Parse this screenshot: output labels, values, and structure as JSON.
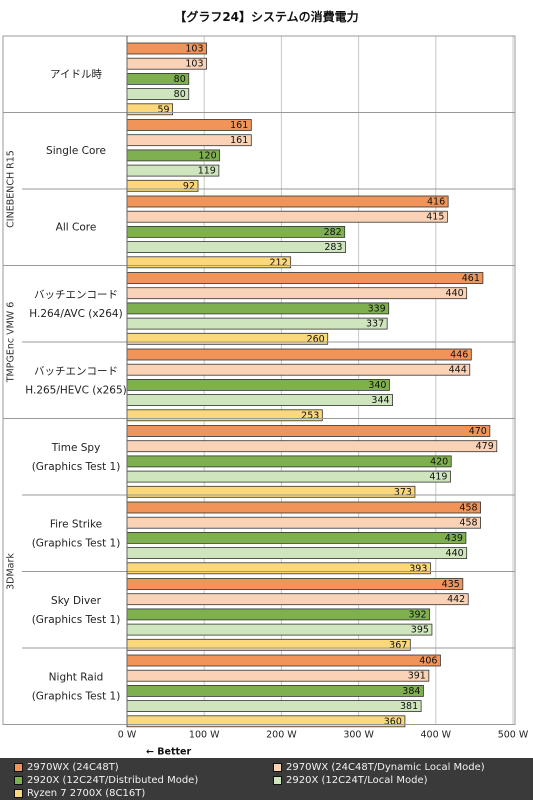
{
  "chart_data": {
    "type": "bar",
    "orientation": "horizontal",
    "title": "【グラフ24】システムの消費電力",
    "x_axis": {
      "min": 0,
      "max": 500,
      "step": 100,
      "tick_labels": [
        "0 W",
        "100 W",
        "200 W",
        "300 W",
        "400 W",
        "500 W"
      ],
      "note": "← Better"
    },
    "grid": true,
    "legend_position": "bottom",
    "groups": [
      {
        "name": "",
        "categories": [
          {
            "label": [
              "アイドル時"
            ],
            "values": [
              103,
              103,
              80,
              80,
              59
            ]
          }
        ]
      },
      {
        "name": "CINEBENCH R15",
        "categories": [
          {
            "label": [
              "Single Core"
            ],
            "values": [
              161,
              161,
              120,
              119,
              92
            ]
          },
          {
            "label": [
              "All Core"
            ],
            "values": [
              416,
              415,
              282,
              283,
              212
            ]
          }
        ]
      },
      {
        "name": "TMPGEnc VMW 6",
        "categories": [
          {
            "label": [
              "バッチエンコード",
              "H.264/AVC (x264)"
            ],
            "values": [
              461,
              440,
              339,
              337,
              260
            ]
          },
          {
            "label": [
              "バッチエンコード",
              "H.265/HEVC (x265)"
            ],
            "values": [
              446,
              444,
              340,
              344,
              253
            ]
          }
        ]
      },
      {
        "name": "3DMark",
        "categories": [
          {
            "label": [
              "Time Spy",
              "(Graphics Test 1)"
            ],
            "values": [
              470,
              479,
              420,
              419,
              373
            ]
          },
          {
            "label": [
              "Fire Strike",
              "(Graphics Test 1)"
            ],
            "values": [
              458,
              458,
              439,
              440,
              393
            ]
          },
          {
            "label": [
              "Sky Diver",
              "(Graphics Test 1)"
            ],
            "values": [
              435,
              442,
              392,
              395,
              367
            ]
          },
          {
            "label": [
              "Night Raid",
              "(Graphics Test 1)"
            ],
            "values": [
              406,
              391,
              384,
              381,
              360
            ]
          }
        ]
      }
    ],
    "series": [
      {
        "name": "2970WX (24C48T)",
        "color": "#f0945a"
      },
      {
        "name": "2970WX (24C48T/Dynamic Local Mode)",
        "color": "#fad3b6"
      },
      {
        "name": "2920X (12C24T/Distributed Mode)",
        "color": "#7fb04f"
      },
      {
        "name": "2920X (12C24T/Local Mode)",
        "color": "#cfe5bd"
      },
      {
        "name": "Ryzen 7 2700X (8C16T)",
        "color": "#fbd97a"
      }
    ]
  }
}
